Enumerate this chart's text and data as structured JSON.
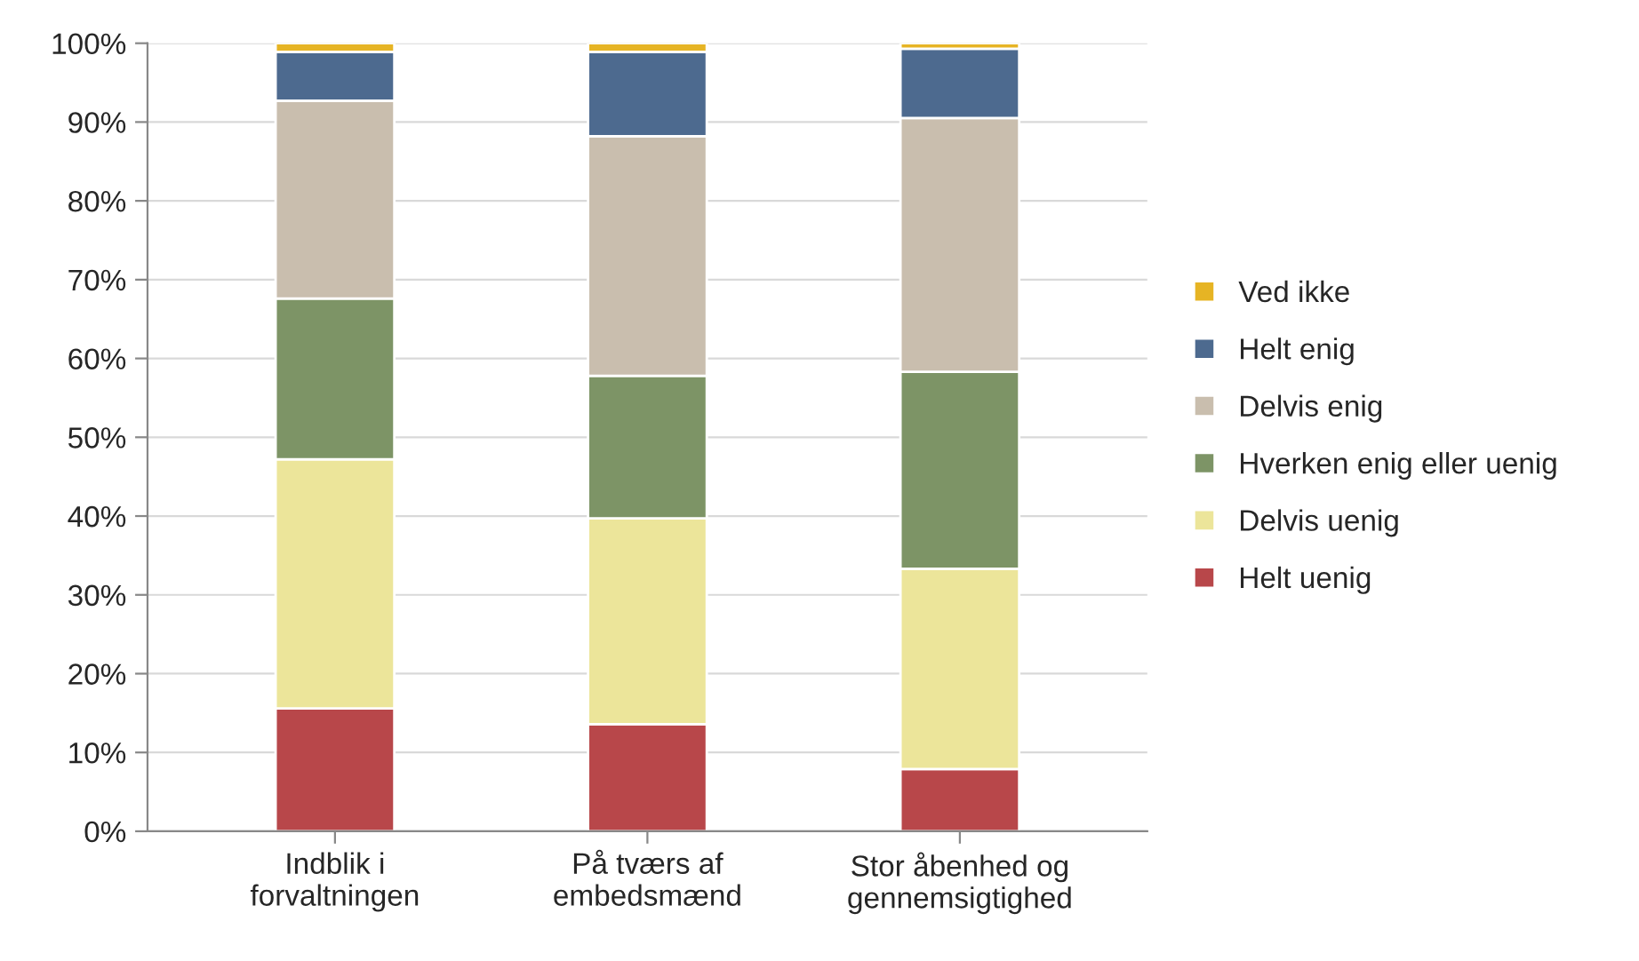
{
  "chart_data": {
    "type": "bar",
    "stacked": true,
    "categories": [
      "Indblik i\nforvaltningen",
      "På tværs af\nembedsmænd",
      "Stor åbenhed og\ngennemsigtighed"
    ],
    "series": [
      {
        "name": "Helt uenig",
        "color": "#b8474a",
        "values": [
          15.6,
          13.6,
          7.9
        ]
      },
      {
        "name": "Delvis uenig",
        "color": "#ece59a",
        "values": [
          31.6,
          26.1,
          25.4
        ]
      },
      {
        "name": "Hverken enig eller uenig",
        "color": "#7d9466",
        "values": [
          20.4,
          18.1,
          25.0
        ]
      },
      {
        "name": "Delvis enig",
        "color": "#c9beae",
        "values": [
          25.1,
          30.4,
          32.2
        ]
      },
      {
        "name": "Helt enig",
        "color": "#4d6a8f",
        "values": [
          6.2,
          10.7,
          8.8
        ]
      },
      {
        "name": "Ved ikke",
        "color": "#e6b424",
        "values": [
          1.1,
          1.1,
          0.7
        ]
      }
    ],
    "ylim": [
      0,
      100
    ],
    "yticks": [
      {
        "value": 0,
        "label": "0%"
      },
      {
        "value": 10,
        "label": "10%"
      },
      {
        "value": 20,
        "label": "20%"
      },
      {
        "value": 30,
        "label": "30%"
      },
      {
        "value": 40,
        "label": "40%"
      },
      {
        "value": 50,
        "label": "50%"
      },
      {
        "value": 60,
        "label": "60%"
      },
      {
        "value": 70,
        "label": "70%"
      },
      {
        "value": 80,
        "label": "80%"
      },
      {
        "value": 90,
        "label": "90%"
      },
      {
        "value": 100,
        "label": "100%"
      }
    ],
    "grid": "y",
    "legend": "right"
  }
}
